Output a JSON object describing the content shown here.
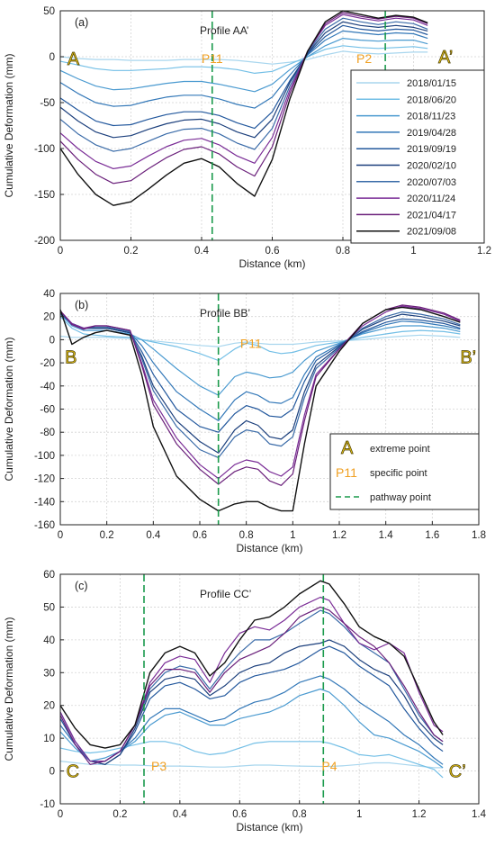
{
  "chart_data": [
    {
      "type": "line",
      "panel_label": "(a)",
      "title": "Profile AA’",
      "xlabel": "Distance (km)",
      "ylabel": "Cumulative Deformation  (mm)",
      "xlim": [
        0,
        1.2
      ],
      "ylim": [
        -200,
        50
      ],
      "x_ticks": [
        "0",
        "0.2",
        "0.4",
        "0.6",
        "0.8",
        "1",
        "1.2"
      ],
      "y_ticks": [
        "50",
        "0",
        "-50",
        "-100",
        "-150",
        "-200"
      ],
      "grid": true,
      "legend": "right",
      "x": [
        0,
        0.05,
        0.1,
        0.15,
        0.2,
        0.25,
        0.3,
        0.35,
        0.4,
        0.45,
        0.5,
        0.55,
        0.6,
        0.65,
        0.7,
        0.75,
        0.8,
        0.85,
        0.9,
        0.95,
        1.0,
        1.04
      ],
      "series": [
        {
          "name": "2018/01/15",
          "values": [
            0,
            -2,
            -3,
            -3,
            -4,
            -4,
            -4,
            -3,
            -3,
            -3,
            -4,
            -6,
            -8,
            -6,
            -3,
            2,
            6,
            4,
            3,
            4,
            5,
            5
          ]
        },
        {
          "name": "2018/06/20",
          "values": [
            -5,
            -9,
            -13,
            -15,
            -15,
            -14,
            -13,
            -11,
            -11,
            -12,
            -14,
            -18,
            -16,
            -8,
            0,
            8,
            12,
            10,
            9,
            10,
            11,
            9
          ]
        },
        {
          "name": "2018/11/23",
          "values": [
            -15,
            -24,
            -32,
            -36,
            -35,
            -32,
            -29,
            -27,
            -27,
            -30,
            -34,
            -38,
            -30,
            -14,
            0,
            12,
            20,
            18,
            17,
            18,
            18,
            14
          ]
        },
        {
          "name": "2019/04/28",
          "values": [
            -28,
            -40,
            -50,
            -54,
            -53,
            -48,
            -44,
            -42,
            -42,
            -46,
            -52,
            -56,
            -44,
            -20,
            2,
            18,
            28,
            26,
            24,
            26,
            25,
            20
          ]
        },
        {
          "name": "2019/09/19",
          "values": [
            -45,
            -58,
            -70,
            -75,
            -74,
            -68,
            -63,
            -60,
            -60,
            -64,
            -72,
            -78,
            -60,
            -26,
            3,
            22,
            34,
            30,
            28,
            30,
            29,
            24
          ]
        },
        {
          "name": "2020/02/10",
          "values": [
            -55,
            -70,
            -82,
            -88,
            -86,
            -79,
            -73,
            -69,
            -68,
            -73,
            -82,
            -88,
            -68,
            -28,
            4,
            26,
            38,
            34,
            32,
            34,
            32,
            28
          ]
        },
        {
          "name": "2020/07/03",
          "values": [
            -68,
            -84,
            -96,
            -103,
            -100,
            -92,
            -84,
            -79,
            -78,
            -84,
            -94,
            -101,
            -78,
            -32,
            5,
            30,
            42,
            38,
            35,
            38,
            36,
            30
          ]
        },
        {
          "name": "2020/11/24",
          "values": [
            -83,
            -100,
            -114,
            -122,
            -119,
            -108,
            -98,
            -91,
            -89,
            -96,
            -108,
            -116,
            -88,
            -36,
            6,
            34,
            46,
            42,
            39,
            42,
            40,
            34
          ]
        },
        {
          "name": "2021/04/17",
          "values": [
            -92,
            -112,
            -128,
            -138,
            -135,
            -122,
            -110,
            -101,
            -98,
            -106,
            -120,
            -130,
            -98,
            -40,
            6,
            36,
            48,
            44,
            41,
            44,
            42,
            36
          ]
        },
        {
          "name": "2021/09/08",
          "values": [
            -100,
            -128,
            -150,
            -162,
            -158,
            -144,
            -129,
            -116,
            -111,
            -120,
            -138,
            -152,
            -112,
            -46,
            6,
            38,
            50,
            46,
            42,
            45,
            43,
            37
          ]
        }
      ],
      "pathway_points_x": [
        0.43,
        0.92
      ],
      "specific_points": [
        {
          "label": "P11",
          "x": 0.43,
          "y": -2
        },
        {
          "label": "P2",
          "x": 0.86,
          "y": -2
        }
      ],
      "extreme_points": [
        {
          "label": "A",
          "x": 0.02,
          "y": -2
        },
        {
          "label": "A’",
          "x": 1.07,
          "y": 0
        }
      ]
    },
    {
      "type": "line",
      "panel_label": "(b)",
      "title": "Profile BB’",
      "xlabel": "Distance (km)",
      "ylabel": "Cumulative Deformation  (mm)",
      "xlim": [
        0,
        1.8
      ],
      "ylim": [
        -160,
        40
      ],
      "x_ticks": [
        "0",
        "0.2",
        "0.4",
        "0.6",
        "0.8",
        "1",
        "1.2",
        "1.4",
        "1.6",
        "1.8"
      ],
      "y_ticks": [
        "40",
        "20",
        "0",
        "-20",
        "-40",
        "-60",
        "-80",
        "-100",
        "-120",
        "-140",
        "-160"
      ],
      "grid": true,
      "legend": "right",
      "legend_items": [
        {
          "symbol": "A",
          "label": "extreme point"
        },
        {
          "symbol": "P11",
          "label": "specific point"
        },
        {
          "symbol": "dash",
          "label": "pathway point"
        }
      ],
      "x": [
        0,
        0.05,
        0.1,
        0.15,
        0.2,
        0.3,
        0.35,
        0.4,
        0.5,
        0.6,
        0.68,
        0.75,
        0.8,
        0.85,
        0.9,
        0.95,
        1.0,
        1.05,
        1.1,
        1.2,
        1.3,
        1.4,
        1.47,
        1.55,
        1.65,
        1.72
      ],
      "series": [
        {
          "name": "2018/01/15",
          "values": [
            3,
            2,
            2,
            2,
            2,
            1,
            0,
            -1,
            -3,
            -5,
            -6,
            -3,
            -2,
            -3,
            -4,
            -4,
            -4,
            -3,
            -2,
            -1,
            0,
            2,
            3,
            4,
            3,
            2
          ]
        },
        {
          "name": "2018/06/20",
          "values": [
            20,
            10,
            5,
            4,
            3,
            2,
            0,
            -2,
            -6,
            -12,
            -18,
            -8,
            -3,
            -5,
            -10,
            -12,
            -11,
            -8,
            -5,
            -2,
            2,
            5,
            7,
            8,
            7,
            5
          ]
        },
        {
          "name": "2018/11/23",
          "values": [
            22,
            12,
            8,
            8,
            8,
            5,
            0,
            -8,
            -25,
            -40,
            -48,
            -32,
            -28,
            -30,
            -33,
            -32,
            -28,
            -18,
            -10,
            -3,
            5,
            10,
            12,
            12,
            10,
            7
          ]
        },
        {
          "name": "2019/04/28",
          "values": [
            22,
            14,
            10,
            10,
            10,
            6,
            -5,
            -20,
            -45,
            -60,
            -70,
            -52,
            -45,
            -48,
            -54,
            -55,
            -50,
            -30,
            -15,
            -4,
            6,
            13,
            16,
            15,
            12,
            9
          ]
        },
        {
          "name": "2019/09/19",
          "values": [
            23,
            14,
            10,
            10,
            10,
            6,
            -10,
            -30,
            -60,
            -75,
            -80,
            -64,
            -57,
            -60,
            -66,
            -67,
            -60,
            -36,
            -18,
            -5,
            7,
            15,
            18,
            17,
            14,
            10
          ]
        },
        {
          "name": "2020/02/10",
          "values": [
            24,
            14,
            10,
            10,
            10,
            6,
            -14,
            -40,
            -70,
            -88,
            -98,
            -78,
            -70,
            -74,
            -84,
            -86,
            -78,
            -45,
            -22,
            -6,
            9,
            18,
            22,
            20,
            16,
            12
          ]
        },
        {
          "name": "2020/07/03",
          "values": [
            24,
            14,
            10,
            11,
            11,
            7,
            -16,
            -44,
            -75,
            -95,
            -102,
            -84,
            -78,
            -80,
            -90,
            -92,
            -84,
            -50,
            -25,
            -7,
            10,
            20,
            24,
            22,
            18,
            13
          ]
        },
        {
          "name": "2020/11/24",
          "values": [
            25,
            14,
            10,
            12,
            12,
            8,
            -20,
            -52,
            -85,
            -108,
            -120,
            -108,
            -104,
            -106,
            -114,
            -118,
            -110,
            -65,
            -30,
            -8,
            12,
            24,
            29,
            27,
            22,
            16
          ]
        },
        {
          "name": "2021/04/17",
          "values": [
            25,
            13,
            9,
            12,
            12,
            8,
            -22,
            -56,
            -90,
            -112,
            -125,
            -114,
            -110,
            -112,
            -122,
            -126,
            -116,
            -70,
            -32,
            -8,
            14,
            26,
            30,
            28,
            23,
            17
          ]
        },
        {
          "name": "2021/09/08",
          "values": [
            26,
            -4,
            2,
            6,
            8,
            4,
            -30,
            -75,
            -118,
            -138,
            -148,
            -142,
            -140,
            -140,
            -145,
            -148,
            -148,
            -90,
            -40,
            -10,
            14,
            26,
            28,
            26,
            20,
            15
          ]
        }
      ],
      "pathway_points_x": [
        0.68
      ],
      "specific_points": [
        {
          "label": "P11",
          "x": 0.82,
          "y": -3
        }
      ],
      "extreme_points": [
        {
          "label": "B",
          "x": 0.02,
          "y": -15
        },
        {
          "label": "B’",
          "x": 1.72,
          "y": -15
        }
      ]
    },
    {
      "type": "line",
      "panel_label": "(c)",
      "title": "Profile CC’",
      "xlabel": "Distance (km)",
      "ylabel": "Cumulative Deformation  (mm)",
      "xlim": [
        0,
        1.4
      ],
      "ylim": [
        -10,
        60
      ],
      "x_ticks": [
        "0",
        "0.2",
        "0.4",
        "0.6",
        "0.8",
        "1",
        "1.2",
        "1.4"
      ],
      "y_ticks": [
        "60",
        "50",
        "40",
        "30",
        "20",
        "10",
        "0",
        "-10"
      ],
      "grid": true,
      "legend": "none",
      "x": [
        0,
        0.05,
        0.1,
        0.15,
        0.2,
        0.25,
        0.3,
        0.35,
        0.4,
        0.45,
        0.5,
        0.55,
        0.6,
        0.65,
        0.7,
        0.75,
        0.8,
        0.87,
        0.9,
        0.95,
        1.0,
        1.05,
        1.1,
        1.15,
        1.2,
        1.25,
        1.28
      ],
      "series": [
        {
          "name": "2018/01/15",
          "values": [
            3,
            2.5,
            2,
            2,
            1.8,
            1.8,
            1.6,
            1.5,
            1.5,
            1.4,
            1.2,
            1.2,
            1.5,
            1.8,
            1.8,
            1.6,
            1.5,
            1.4,
            1.4,
            1.6,
            2,
            2.5,
            2.5,
            2,
            1.5,
            1,
            1
          ]
        },
        {
          "name": "2018/06/20",
          "values": [
            7,
            6,
            5.5,
            6,
            7,
            8,
            9,
            9,
            8,
            6,
            5,
            5.5,
            7,
            8.5,
            9,
            9,
            9,
            9,
            8.5,
            7,
            5,
            4.5,
            5,
            3.5,
            2,
            0.5,
            -2
          ]
        },
        {
          "name": "2018/11/23",
          "values": [
            12,
            7,
            3,
            4,
            6,
            9,
            14,
            17,
            18,
            16,
            14,
            14,
            16,
            17,
            18,
            20,
            23,
            25,
            24,
            20,
            15,
            11,
            10,
            8,
            6,
            3,
            1
          ]
        },
        {
          "name": "2019/04/28",
          "values": [
            14,
            8,
            3,
            3,
            6,
            10,
            16,
            19,
            19,
            17,
            15,
            16,
            19,
            21,
            22,
            24,
            27,
            29,
            28,
            25,
            21,
            18,
            15,
            11,
            8,
            4,
            2
          ]
        },
        {
          "name": "2019/09/19",
          "values": [
            16,
            8,
            3,
            2,
            5,
            12,
            22,
            26,
            27,
            25,
            22,
            23,
            27,
            29,
            30,
            31,
            33,
            37,
            38,
            36,
            32,
            29,
            26,
            19,
            13,
            8,
            6
          ]
        },
        {
          "name": "2020/02/10",
          "values": [
            18,
            9,
            3,
            2,
            5,
            13,
            24,
            28,
            29,
            28,
            23,
            26,
            30,
            32,
            33,
            36,
            38,
            39,
            40,
            38,
            34,
            31,
            29,
            23,
            15,
            10,
            8
          ]
        },
        {
          "name": "2020/07/03",
          "values": [
            17,
            8,
            3,
            3,
            6,
            14,
            25,
            30,
            32,
            31,
            25,
            31,
            36,
            40,
            40,
            42,
            45,
            49,
            48,
            44,
            39,
            36,
            33,
            25,
            17,
            11,
            9
          ]
        },
        {
          "name": "2020/11/24",
          "values": [
            18,
            9,
            3,
            3,
            6,
            14,
            27,
            33,
            35,
            34,
            27,
            36,
            42,
            44,
            43,
            46,
            50,
            53,
            52,
            45,
            39,
            37,
            39,
            36,
            24,
            14,
            12
          ]
        },
        {
          "name": "2021/04/17",
          "values": [
            17,
            8,
            2,
            3,
            6,
            14,
            26,
            31,
            31,
            30,
            24,
            30,
            34,
            36,
            38,
            42,
            47,
            50,
            49,
            45,
            41,
            38,
            33,
            26,
            18,
            11,
            9
          ]
        },
        {
          "name": "2021/09/08",
          "values": [
            20,
            13,
            8,
            7,
            8,
            14,
            30,
            36,
            38,
            36,
            29,
            33,
            40,
            46,
            47,
            50,
            54,
            58,
            57,
            51,
            44,
            41,
            39,
            35,
            25,
            15,
            11
          ]
        }
      ],
      "pathway_points_x": [
        0.28,
        0.88
      ],
      "specific_points": [
        {
          "label": "P3",
          "x": 0.33,
          "y": 1.5
        },
        {
          "label": "P4",
          "x": 0.9,
          "y": 1.5
        }
      ],
      "extreme_points": [
        {
          "label": "C",
          "x": 0.02,
          "y": 0
        },
        {
          "label": "C’",
          "x": 1.3,
          "y": 0
        }
      ]
    }
  ],
  "colors": [
    "#a8d6ee",
    "#73bfe6",
    "#4a9ad0",
    "#3378b8",
    "#23589d",
    "#1b3f7c",
    "#3a6ba8",
    "#7a2c96",
    "#6a1f7a",
    "#111111"
  ],
  "pathway_color": "#1a9a4c",
  "specific_color": "#f0a022",
  "extreme_color": "#e2c01a"
}
